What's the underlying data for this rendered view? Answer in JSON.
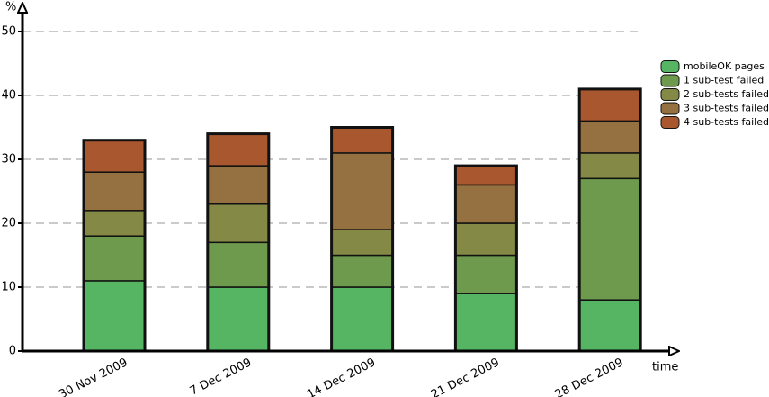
{
  "chart_data": {
    "type": "stacked-bar",
    "y_label": "%",
    "x_label": "time",
    "categories": [
      "30 Nov 2009",
      "7 Dec 2009",
      "14 Dec 2009",
      "21 Dec 2009",
      "28 Dec 2009"
    ],
    "series": [
      {
        "name": "mobileOK pages",
        "color": "#55b562",
        "values": [
          11,
          10,
          10,
          9,
          8
        ]
      },
      {
        "name": "1 sub-test failed",
        "color": "#6e9a4e",
        "values": [
          7,
          7,
          5,
          6,
          19
        ]
      },
      {
        "name": "2 sub-tests failed",
        "color": "#848a46",
        "values": [
          4,
          6,
          4,
          5,
          4
        ]
      },
      {
        "name": "3 sub-tests failed",
        "color": "#957040",
        "values": [
          6,
          6,
          12,
          6,
          5
        ]
      },
      {
        "name": "4 sub-tests failed",
        "color": "#a9572f",
        "values": [
          5,
          5,
          4,
          3,
          5
        ]
      }
    ],
    "ylim": [
      0,
      50
    ],
    "yticks": [
      0,
      10,
      20,
      30,
      40,
      50
    ],
    "grid": true,
    "legend": "right"
  }
}
